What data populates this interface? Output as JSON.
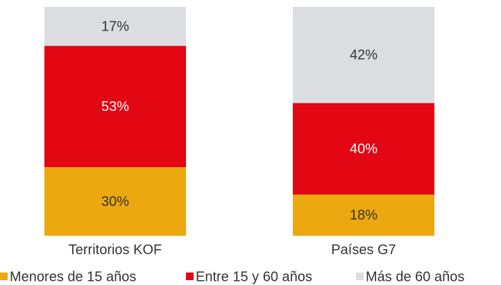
{
  "chart_data": {
    "type": "stacked-bar",
    "categories": [
      "Territorios KOF",
      "Países G7"
    ],
    "series": [
      {
        "name": "Menores de 15 años",
        "color": "#eba80f",
        "values": [
          30,
          18
        ],
        "value_labels": [
          "30%",
          "18%"
        ]
      },
      {
        "name": "Entre 15 y 60 años",
        "color": "#e30613",
        "values": [
          53,
          40
        ],
        "value_labels": [
          "53%",
          "40%"
        ]
      },
      {
        "name": "Más de 60 años",
        "color": "#dcdde1",
        "values": [
          17,
          42
        ],
        "value_labels": [
          "17%",
          "42%"
        ]
      }
    ],
    "legend": "bottom"
  }
}
